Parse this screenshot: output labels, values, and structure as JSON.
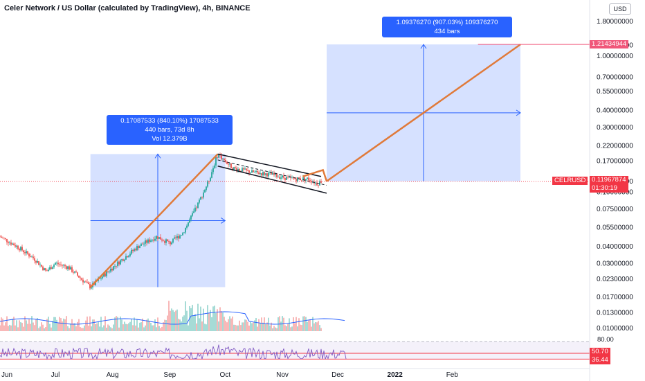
{
  "header": {
    "symbol_title": "Celer Network / US Dollar (calculated by TradingView), 4h, BINANCE",
    "currency_badge": "USD"
  },
  "colors": {
    "up": "#26a69a",
    "down": "#ef5350",
    "projection_fill": "#cfdcff",
    "projection_line": "#2962ff",
    "trend_line": "#e07a3a",
    "channel_line": "#131722",
    "rsi_line": "#7e57c2",
    "price_badge": "#f23645",
    "target_badge": "#f0577a"
  },
  "measure_box_1": {
    "line1": "0.17087533 (840.10%) 17087533",
    "line2": "440 bars, 73d 8h",
    "line3": "Vol 12.379B"
  },
  "measure_box_2": {
    "line1": "1.09376270 (907.03%) 109376270",
    "line2": "434 bars"
  },
  "price_badges": {
    "target_price": "1.21434944",
    "symbol": "CELRUSD",
    "last_price": "0.11967874",
    "countdown": "01:30:19"
  },
  "rsi_badges": {
    "upper_level": "80.00",
    "rsi_value": "50.70",
    "rsi_ma": "36.44"
  },
  "chart_data": {
    "type": "candlestick",
    "symbol": "CELRUSD",
    "timeframe": "4h",
    "exchange": "BINANCE",
    "yscale": "log",
    "ylim": [
      0.0095,
      2.4
    ],
    "y_ticks": [
      "1.80000000",
      "1.20000000",
      "1.00000000",
      "0.70000000",
      "0.55000000",
      "0.40000000",
      "0.30000000",
      "0.22000000",
      "0.17000000",
      "0.12000000",
      "0.10000000",
      "0.07500000",
      "0.05500000",
      "0.04000000",
      "0.03000000",
      "0.02300000",
      "0.01700000",
      "0.01300000",
      "0.01000000"
    ],
    "x_ticks": [
      "Jun",
      "Jul",
      "Aug",
      "Sep",
      "Oct",
      "Nov",
      "Dec",
      "2022",
      "Feb"
    ],
    "price_path": [
      {
        "date": "2021-06-01",
        "price": 0.047
      },
      {
        "date": "2021-06-10",
        "price": 0.04
      },
      {
        "date": "2021-06-20",
        "price": 0.032
      },
      {
        "date": "2021-06-26",
        "price": 0.026
      },
      {
        "date": "2021-07-01",
        "price": 0.03
      },
      {
        "date": "2021-07-08",
        "price": 0.028
      },
      {
        "date": "2021-07-20",
        "price": 0.02
      },
      {
        "date": "2021-07-28",
        "price": 0.025
      },
      {
        "date": "2021-08-05",
        "price": 0.031
      },
      {
        "date": "2021-08-15",
        "price": 0.04
      },
      {
        "date": "2021-08-25",
        "price": 0.047
      },
      {
        "date": "2021-09-01",
        "price": 0.042
      },
      {
        "date": "2021-09-08",
        "price": 0.05
      },
      {
        "date": "2021-09-15",
        "price": 0.075
      },
      {
        "date": "2021-09-22",
        "price": 0.12
      },
      {
        "date": "2021-09-27",
        "price": 0.19
      },
      {
        "date": "2021-10-05",
        "price": 0.15
      },
      {
        "date": "2021-10-15",
        "price": 0.14
      },
      {
        "date": "2021-10-25",
        "price": 0.135
      },
      {
        "date": "2021-11-05",
        "price": 0.125
      },
      {
        "date": "2021-11-15",
        "price": 0.125
      },
      {
        "date": "2021-11-20",
        "price": 0.115
      },
      {
        "date": "2021-11-22",
        "price": 0.12
      }
    ],
    "measure_box_1": {
      "from_date": "2021-07-20",
      "to_date": "2021-10-01",
      "low": 0.02,
      "high": 0.19,
      "change": "0.17087533 (840.10%)",
      "bars": 440,
      "duration": "73d 8h",
      "volume": "12.379B"
    },
    "measure_box_2": {
      "from_date": "2021-11-25",
      "to_date": "2022-03-10",
      "low": 0.12,
      "high": 1.21434944,
      "change": "1.09376270 (907.03%)",
      "bars": 434
    },
    "channel": {
      "upper": [
        [
          "2021-09-27",
          0.19
        ],
        [
          "2021-11-22",
          0.13
        ]
      ],
      "lower": [
        [
          "2021-09-27",
          0.155
        ],
        [
          "2021-11-25",
          0.098
        ]
      ]
    },
    "projection_target": 1.21434944,
    "last_price": 0.11967874,
    "rsi": {
      "value": 50.7,
      "ma": 36.44,
      "levels": [
        80,
        70,
        50,
        30
      ]
    },
    "grid": false
  }
}
